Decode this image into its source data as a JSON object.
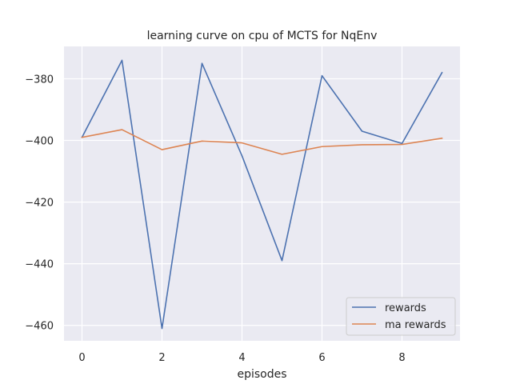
{
  "chart_data": {
    "type": "line",
    "title": "learning curve on cpu of MCTS for NqEnv",
    "xlabel": "episodes",
    "ylabel": "",
    "x": [
      0,
      1,
      2,
      3,
      4,
      5,
      6,
      7,
      8,
      9
    ],
    "xlim": [
      -0.45,
      9.45
    ],
    "ylim": [
      -465,
      -369.5
    ],
    "xticks": [
      0,
      2,
      4,
      6,
      8
    ],
    "yticks": [
      -380,
      -400,
      -420,
      -440,
      -460
    ],
    "grid": true,
    "legend_position": "lower-right",
    "series": [
      {
        "name": "rewards",
        "color": "#4c72b0",
        "values": [
          -399,
          -374,
          -461,
          -375,
          -405,
          -439,
          -379,
          -397,
          -401,
          -378
        ]
      },
      {
        "name": "ma rewards",
        "color": "#dd8452",
        "values": [
          -399,
          -396.5,
          -403,
          -400.2,
          -400.8,
          -404.5,
          -402,
          -401.4,
          -401.3,
          -399.3
        ]
      }
    ]
  }
}
